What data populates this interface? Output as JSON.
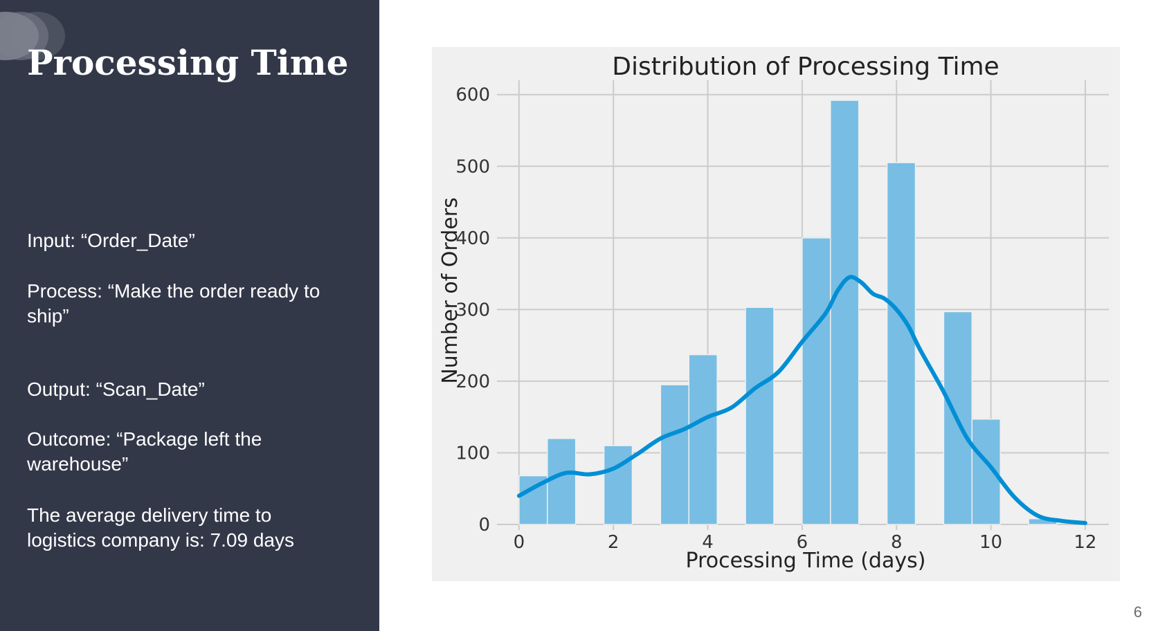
{
  "slide": {
    "title": "Processing Time",
    "input": "Input: “Order_Date”",
    "process": "Process: “Make the order ready to ship”",
    "output": "Output: “Scan_Date”",
    "outcome": "Outcome: “Package left the warehouse”",
    "average": "The average delivery time to logistics company is: 7.09 days",
    "page_number": "6"
  },
  "colors": {
    "panel_bg": "#333849",
    "chart_bg": "#f0f0f0",
    "bar_fill": "#78bde3",
    "kde_line": "#008fd5",
    "grid": "#cbcbcb"
  },
  "chart_data": {
    "type": "bar",
    "title": "Distribution of Processing Time",
    "xlabel": "Processing Time (days)",
    "ylabel": "Number of Orders",
    "xlim": [
      -0.35,
      12.5
    ],
    "ylim": [
      0,
      620
    ],
    "xticks": [
      0,
      2,
      4,
      6,
      8,
      10,
      12
    ],
    "yticks": [
      0,
      100,
      200,
      300,
      400,
      500,
      600
    ],
    "grid": true,
    "bin_width": 0.6,
    "bins": [
      {
        "x0": 0.0,
        "value": 68
      },
      {
        "x0": 0.6,
        "value": 120
      },
      {
        "x0": 1.8,
        "value": 110
      },
      {
        "x0": 3.0,
        "value": 195
      },
      {
        "x0": 3.6,
        "value": 237
      },
      {
        "x0": 4.8,
        "value": 303
      },
      {
        "x0": 6.0,
        "value": 400
      },
      {
        "x0": 6.6,
        "value": 592
      },
      {
        "x0": 7.8,
        "value": 505
      },
      {
        "x0": 9.0,
        "value": 297
      },
      {
        "x0": 9.6,
        "value": 147
      },
      {
        "x0": 10.8,
        "value": 8
      }
    ],
    "kde_series": {
      "x": [
        0,
        0.5,
        1.0,
        1.5,
        2.0,
        2.5,
        3.0,
        3.5,
        4.0,
        4.5,
        5.0,
        5.5,
        6.0,
        6.5,
        6.75,
        7.0,
        7.25,
        7.5,
        7.75,
        8.0,
        8.25,
        8.5,
        9.0,
        9.5,
        10.0,
        10.5,
        11.0,
        11.5,
        12.0
      ],
      "y": [
        40,
        58,
        72,
        70,
        78,
        98,
        120,
        133,
        150,
        163,
        190,
        213,
        255,
        295,
        326,
        345,
        338,
        322,
        315,
        300,
        277,
        244,
        185,
        120,
        80,
        38,
        12,
        5,
        2
      ]
    }
  }
}
